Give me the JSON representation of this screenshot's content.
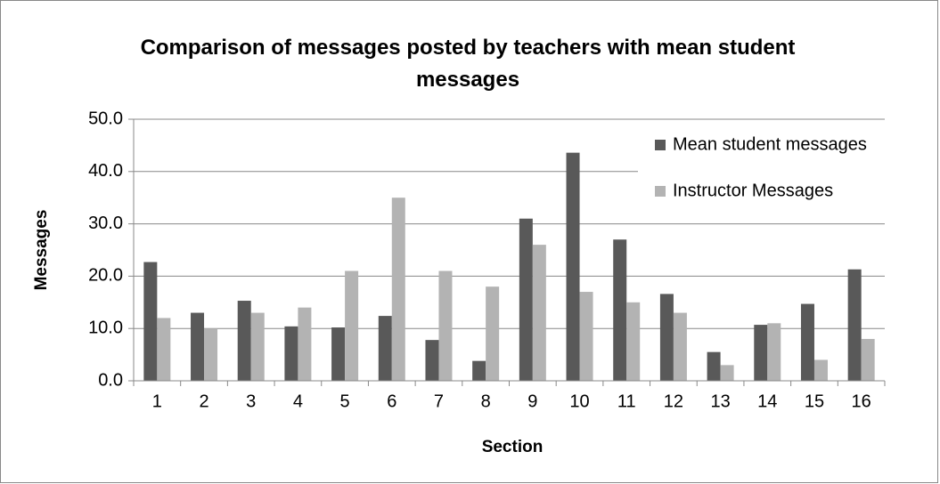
{
  "chart_data": {
    "type": "bar",
    "title": "Comparison of messages posted by teachers with mean student messages",
    "x_label": "Section",
    "y_label": "Messages",
    "categories": [
      "1",
      "2",
      "3",
      "4",
      "5",
      "6",
      "7",
      "8",
      "9",
      "10",
      "11",
      "12",
      "13",
      "14",
      "15",
      "16"
    ],
    "series": [
      {
        "name": "Mean student messages",
        "color": "#595959",
        "values": [
          22.7,
          13,
          15.3,
          10.4,
          10.2,
          12.4,
          7.8,
          3.8,
          31,
          43.6,
          27,
          16.6,
          5.5,
          10.7,
          14.7,
          21.3
        ]
      },
      {
        "name": "Instructor Messages",
        "color": "#b3b3b3",
        "values": [
          12,
          10,
          13,
          14,
          21,
          35,
          21,
          18,
          26,
          17,
          15,
          13,
          3,
          11,
          4,
          8
        ]
      }
    ],
    "ylim": [
      0,
      50
    ],
    "yticks": [
      {
        "value": 0,
        "label": "0.0"
      },
      {
        "value": 10,
        "label": "10.0"
      },
      {
        "value": 20,
        "label": "20.0"
      },
      {
        "value": 30,
        "label": "30.0"
      },
      {
        "value": 40,
        "label": "40.0"
      },
      {
        "value": 50,
        "label": "50.0"
      }
    ],
    "grid": true,
    "legend": "top-right"
  }
}
